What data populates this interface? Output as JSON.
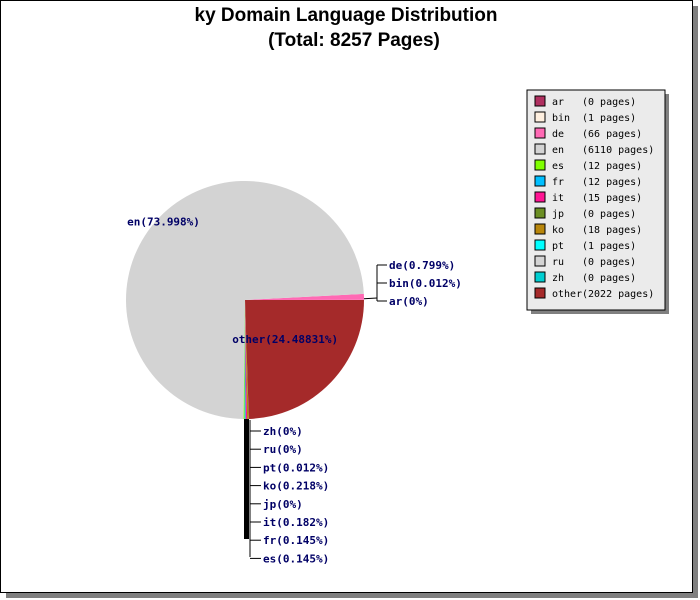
{
  "chart_data": {
    "type": "pie",
    "title": "ky Domain Language Distribution",
    "subtitle": "(Total: 8257 Pages)",
    "categories": [
      "ar",
      "bin",
      "de",
      "en",
      "es",
      "fr",
      "it",
      "jp",
      "ko",
      "pt",
      "ru",
      "zh",
      "other"
    ],
    "values": [
      0,
      1,
      66,
      6110,
      12,
      12,
      15,
      0,
      18,
      1,
      0,
      0,
      2022
    ],
    "value_labels": [
      "(0 pages)",
      "(1 pages)",
      "(66 pages)",
      "(6110 pages)",
      "(12 pages)",
      "(12 pages)",
      "(15 pages)",
      "(0 pages)",
      "(18 pages)",
      "(1 pages)",
      "(0 pages)",
      "(0 pages)",
      "(2022 pages)"
    ],
    "slice_labels": [
      "ar(0%)",
      "bin(0.012%)",
      "de(0.799%)",
      "en(73.998%)",
      "es(0.145%)",
      "fr(0.145%)",
      "it(0.182%)",
      "jp(0%)",
      "ko(0.218%)",
      "pt(0.012%)",
      "ru(0%)",
      "zh(0%)",
      "other(24.48831%)"
    ],
    "colors": [
      "#b03060",
      "#fff0e0",
      "#ff69b4",
      "#d3d3d3",
      "#7fff00",
      "#00bfff",
      "#ff1493",
      "#6b8e23",
      "#b8860b",
      "#00ffff",
      "#d3d3d3",
      "#00ced1",
      "#a52a2a"
    ],
    "legend_position": "upper right"
  }
}
